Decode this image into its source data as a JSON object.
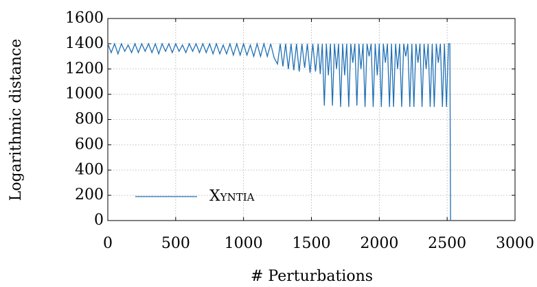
{
  "chart_data": {
    "type": "line",
    "xlabel": "# Perturbations",
    "ylabel": "Logarithmic distance",
    "xlim": [
      0,
      3000
    ],
    "xticks": [
      0,
      500,
      1000,
      1500,
      2000,
      2500,
      3000
    ],
    "ylim": [
      0,
      1600
    ],
    "yticks": [
      0,
      200,
      400,
      600,
      800,
      1000,
      1200,
      1400,
      1600
    ],
    "grid": true,
    "legend": "lower left",
    "x": [
      0,
      25,
      50,
      75,
      100,
      125,
      150,
      175,
      200,
      225,
      250,
      275,
      300,
      325,
      350,
      375,
      400,
      425,
      450,
      475,
      500,
      525,
      550,
      575,
      600,
      625,
      650,
      675,
      700,
      725,
      750,
      775,
      800,
      825,
      850,
      875,
      900,
      925,
      950,
      975,
      1000,
      1025,
      1050,
      1075,
      1100,
      1125,
      1150,
      1175,
      1200,
      1225,
      1250,
      1270,
      1290,
      1310,
      1330,
      1350,
      1370,
      1390,
      1410,
      1430,
      1450,
      1470,
      1490,
      1510,
      1530,
      1550,
      1565,
      1580,
      1595,
      1610,
      1625,
      1640,
      1655,
      1670,
      1685,
      1700,
      1715,
      1730,
      1745,
      1760,
      1775,
      1790,
      1805,
      1820,
      1835,
      1850,
      1865,
      1880,
      1895,
      1910,
      1925,
      1940,
      1955,
      1970,
      1985,
      2000,
      2015,
      2030,
      2045,
      2060,
      2075,
      2090,
      2105,
      2120,
      2135,
      2150,
      2165,
      2180,
      2195,
      2210,
      2225,
      2240,
      2255,
      2270,
      2285,
      2300,
      2315,
      2330,
      2345,
      2360,
      2375,
      2390,
      2405,
      2420,
      2435,
      2450,
      2465,
      2480,
      2495,
      2510,
      2520,
      2525
    ],
    "series": [
      {
        "name": "Xyntia",
        "color": "#1f6fb4",
        "values": [
          1400,
          1330,
          1400,
          1320,
          1400,
          1340,
          1390,
          1330,
          1400,
          1330,
          1400,
          1340,
          1400,
          1330,
          1400,
          1320,
          1400,
          1340,
          1400,
          1330,
          1400,
          1340,
          1390,
          1330,
          1400,
          1340,
          1400,
          1330,
          1400,
          1330,
          1400,
          1320,
          1400,
          1320,
          1390,
          1320,
          1400,
          1310,
          1400,
          1310,
          1400,
          1310,
          1390,
          1300,
          1400,
          1300,
          1400,
          1300,
          1400,
          1290,
          1240,
          1400,
          1220,
          1400,
          1200,
          1400,
          1190,
          1400,
          1180,
          1400,
          1210,
          1400,
          1170,
          1400,
          1180,
          1400,
          1160,
          1400,
          910,
          1400,
          1150,
          1400,
          910,
          1400,
          1200,
          1400,
          900,
          1400,
          1150,
          1400,
          900,
          1400,
          1250,
          1400,
          910,
          1400,
          1200,
          1400,
          900,
          1400,
          1300,
          1400,
          900,
          1400,
          1150,
          1400,
          900,
          1400,
          1250,
          1400,
          900,
          1400,
          900,
          1400,
          1200,
          1400,
          900,
          1400,
          1300,
          1400,
          900,
          1400,
          900,
          1400,
          1250,
          1400,
          900,
          1400,
          1200,
          1400,
          900,
          1400,
          900,
          1400,
          1250,
          1400,
          900,
          1400,
          900,
          1400,
          1400,
          0
        ]
      }
    ]
  }
}
